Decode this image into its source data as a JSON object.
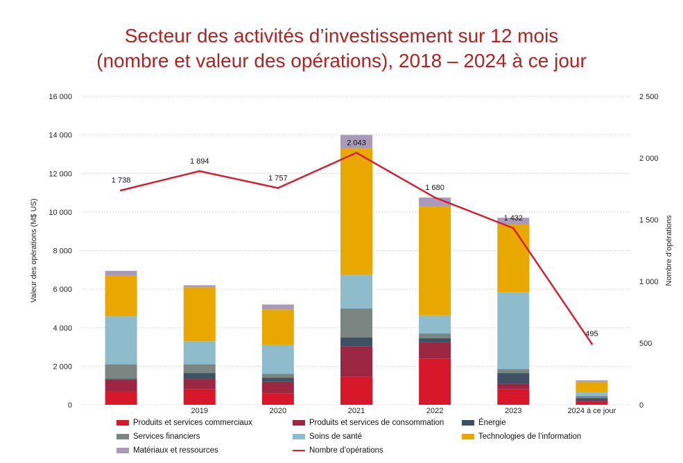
{
  "chart_data": {
    "type": "bar",
    "title": "Secteur des activités d’investissement sur 12 mois",
    "subtitle": "(nombre et valeur des opérations), 2018 – 2024 à ce jour",
    "ylabel_left": "Valeur des opérations (M$ US)",
    "ylabel_right": "Nombre d’opérations",
    "ylim_left": [
      0,
      16000
    ],
    "ylim_right": [
      0,
      2500
    ],
    "yticks_left": [
      "0",
      "2 000",
      "4 000",
      "6 000",
      "8 000",
      "10 000",
      "12 000",
      "14 000",
      "16 000"
    ],
    "yticks_right": [
      "0",
      "500",
      "1 000",
      "1 500",
      "2 000",
      "2 500"
    ],
    "categories": [
      "",
      "2019",
      "2020",
      "2021",
      "2022",
      "2023",
      "2024 à ce jour"
    ],
    "series": [
      {
        "name": "Produits et services commerciaux",
        "color": "#d7182a",
        "values": [
          700,
          800,
          600,
          1450,
          2400,
          800,
          150
        ]
      },
      {
        "name": "Produits et services de consommation",
        "color": "#9b2743",
        "values": [
          600,
          550,
          600,
          1600,
          850,
          300,
          100
        ]
      },
      {
        "name": "Énergie",
        "color": "#3e5062",
        "values": [
          50,
          300,
          200,
          450,
          200,
          550,
          100
        ]
      },
      {
        "name": "Services financiers",
        "color": "#7b8582",
        "values": [
          750,
          450,
          200,
          1500,
          250,
          200,
          100
        ]
      },
      {
        "name": "Soins de santé",
        "color": "#8fbccd",
        "values": [
          2500,
          1200,
          1500,
          1750,
          950,
          4000,
          200
        ]
      },
      {
        "name": "Technologies de l’information",
        "color": "#e8a800",
        "values": [
          2100,
          2800,
          1850,
          6550,
          5650,
          3500,
          550
        ]
      },
      {
        "name": "Matériaux et ressources",
        "color": "#a89ab8",
        "values": [
          250,
          100,
          250,
          700,
          450,
          350,
          70
        ]
      }
    ],
    "line": {
      "name": "Nombre d’opérations",
      "color": "#d42033",
      "values": [
        1738,
        1894,
        1757,
        2043,
        1680,
        1432,
        495
      ],
      "labels": [
        "1 738",
        "1 894",
        "1 757",
        "2 043",
        "1 680",
        "1 432",
        "495"
      ]
    },
    "grid": true,
    "legend_position": "bottom"
  }
}
